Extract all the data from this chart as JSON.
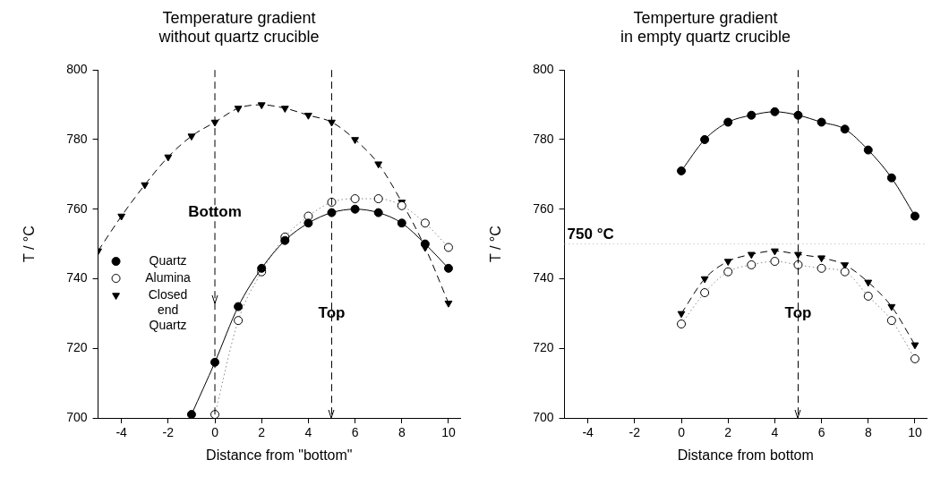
{
  "chart_data": [
    {
      "type": "scatter",
      "title": "Temperature gradient\nwithout quartz crucible",
      "xlabel": "Distance from \"bottom\"",
      "ylabel": "T / °C",
      "xlim": [
        -5,
        10.5
      ],
      "xticks": [
        -4,
        -2,
        0,
        2,
        4,
        6,
        8,
        10
      ],
      "ylim": [
        700,
        800
      ],
      "yticks": [
        700,
        720,
        740,
        760,
        780,
        800
      ],
      "grid": false,
      "legend": "left",
      "series": [
        {
          "name": "Quartz",
          "type": "line",
          "color": "#000000",
          "marker": "circle",
          "line_style": "solid",
          "x": [
            -1,
            0,
            1,
            2,
            3,
            4,
            5,
            6,
            7,
            8,
            9,
            10
          ],
          "values": [
            701,
            716,
            732,
            743,
            751,
            756,
            759,
            760,
            759,
            756,
            750,
            743
          ]
        },
        {
          "name": "Alumina",
          "type": "line",
          "color": "#ffffff",
          "marker": "circle",
          "line_style": "dotted",
          "x": [
            0,
            1,
            2,
            3,
            4,
            5,
            6,
            7,
            8,
            9,
            10
          ],
          "values": [
            701,
            728,
            742,
            752,
            758,
            762,
            763,
            763,
            761,
            756,
            749
          ]
        },
        {
          "name": "Closed end Quartz",
          "type": "line",
          "color": "#000000",
          "marker": "triangle",
          "line_style": "dashed",
          "x": [
            -5,
            -4,
            -3,
            -2,
            -1,
            0,
            1,
            2,
            3,
            4,
            5,
            6,
            7,
            8,
            9,
            10
          ],
          "values": [
            748,
            758,
            767,
            775,
            781,
            785,
            789,
            790,
            789,
            787,
            785,
            780,
            773,
            762,
            749,
            733
          ]
        }
      ],
      "ref_lines": [
        {
          "axis": "x",
          "value": 0,
          "label": "Bottom",
          "line_style": "dashed"
        },
        {
          "axis": "x",
          "value": 5,
          "label": "Top",
          "line_style": "dashed"
        }
      ]
    },
    {
      "type": "scatter",
      "title": "Temperture gradient\nin empty quartz crucible",
      "xlabel": "Distance from bottom",
      "ylabel": "T / °C",
      "xlim": [
        -5,
        10.5
      ],
      "xticks": [
        -4,
        -2,
        0,
        2,
        4,
        6,
        8,
        10
      ],
      "ylim": [
        700,
        800
      ],
      "yticks": [
        700,
        720,
        740,
        760,
        780,
        800
      ],
      "grid": false,
      "legend": false,
      "series": [
        {
          "type": "line",
          "color": "#000000",
          "marker": "circle",
          "line_style": "solid",
          "x": [
            0,
            1,
            2,
            3,
            4,
            5,
            6,
            7,
            8,
            9,
            10
          ],
          "values": [
            771,
            780,
            785,
            787,
            788,
            787,
            785,
            783,
            777,
            769,
            758
          ]
        },
        {
          "type": "line",
          "color": "#ffffff",
          "marker": "circle",
          "line_style": "dotted",
          "x": [
            0,
            1,
            2,
            3,
            4,
            5,
            6,
            7,
            8,
            9,
            10
          ],
          "values": [
            727,
            736,
            742,
            744,
            745,
            744,
            743,
            742,
            735,
            728,
            717
          ]
        },
        {
          "type": "line",
          "color": "#000000",
          "marker": "triangle",
          "line_style": "dashed",
          "x": [
            0,
            1,
            2,
            3,
            4,
            5,
            6,
            7,
            8,
            9,
            10
          ],
          "values": [
            730,
            740,
            745,
            747,
            748,
            747,
            746,
            744,
            739,
            732,
            721
          ]
        }
      ],
      "ref_lines": [
        {
          "axis": "y",
          "value": 750,
          "label": "750 °C",
          "line_style": "dotted",
          "color": "#cccccc"
        },
        {
          "axis": "x",
          "value": 5,
          "label": "Top",
          "line_style": "dashed"
        }
      ]
    }
  ]
}
